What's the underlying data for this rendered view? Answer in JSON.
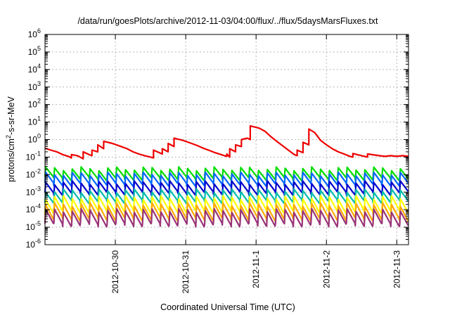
{
  "chart_data": {
    "type": "line",
    "title": "/data/run/goesPlots/archive/2012-11-03/04:00/flux/../flux/5daysMarsFluxes.txt",
    "xlabel": "Coordinated Universal Time (UTC)",
    "ylabel": {
      "prefix": "protons/cm",
      "sup": "2",
      "suffix": "-s-sr-MeV"
    },
    "yscale": "log",
    "ylim": [
      1e-06,
      1000000.0
    ],
    "xlim": [
      "2012-10-29T00:00",
      "2012-11-03T04:00"
    ],
    "grid": true,
    "ytick_labels": [
      {
        "base": "10",
        "exp": "-6"
      },
      {
        "base": "10",
        "exp": "-5"
      },
      {
        "base": "10",
        "exp": "-4"
      },
      {
        "base": "10",
        "exp": "-3"
      },
      {
        "base": "10",
        "exp": "-2"
      },
      {
        "base": "10",
        "exp": "-1"
      },
      {
        "base": "10",
        "exp": "0"
      },
      {
        "base": "10",
        "exp": "1"
      },
      {
        "base": "10",
        "exp": "2"
      },
      {
        "base": "10",
        "exp": "3"
      },
      {
        "base": "10",
        "exp": "4"
      },
      {
        "base": "10",
        "exp": "5"
      },
      {
        "base": "10",
        "exp": "6"
      }
    ],
    "xtick_labels": [
      {
        "label": "2012-10-30",
        "t": "2012-10-30T00:00"
      },
      {
        "label": "2012-10-31",
        "t": "2012-10-31T00:00"
      },
      {
        "label": "2012-11-1",
        "t": "2012-11-01T00:00"
      },
      {
        "label": "2012-11-2",
        "t": "2012-11-02T00:00"
      },
      {
        "label": "2012-11-3",
        "t": "2012-11-03T00:00"
      }
    ],
    "series": [
      {
        "color": "#ee0000",
        "points": [
          [
            "2012-10-29T00:00",
            0.32
          ],
          [
            "2012-10-29T02:00",
            0.25
          ],
          [
            "2012-10-29T04:00",
            0.2
          ],
          [
            "2012-10-29T06:00",
            0.14
          ],
          [
            "2012-10-29T08:00",
            0.11
          ],
          [
            "2012-10-29T09:00",
            0.09
          ],
          [
            "2012-10-29T09:01",
            0.14
          ],
          [
            "2012-10-29T11:00",
            0.12
          ],
          [
            "2012-10-29T12:00",
            0.1
          ],
          [
            "2012-10-29T13:00",
            0.08
          ],
          [
            "2012-10-29T13:01",
            0.2
          ],
          [
            "2012-10-29T15:00",
            0.14
          ],
          [
            "2012-10-29T16:00",
            0.12
          ],
          [
            "2012-10-29T16:01",
            0.25
          ],
          [
            "2012-10-29T18:00",
            0.2
          ],
          [
            "2012-10-29T18:01",
            0.5
          ],
          [
            "2012-10-29T20:00",
            0.3
          ],
          [
            "2012-10-29T20:01",
            0.8
          ],
          [
            "2012-10-29T23:00",
            0.6
          ],
          [
            "2012-10-30T02:00",
            0.4
          ],
          [
            "2012-10-30T04:00",
            0.3
          ],
          [
            "2012-10-30T06:00",
            0.2
          ],
          [
            "2012-10-30T08:00",
            0.15
          ],
          [
            "2012-10-30T10:00",
            0.12
          ],
          [
            "2012-10-30T12:00",
            0.1
          ],
          [
            "2012-10-30T13:00",
            0.09
          ],
          [
            "2012-10-30T13:01",
            0.25
          ],
          [
            "2012-10-30T15:00",
            0.18
          ],
          [
            "2012-10-30T16:00",
            0.15
          ],
          [
            "2012-10-30T16:01",
            0.3
          ],
          [
            "2012-10-30T18:00",
            0.2
          ],
          [
            "2012-10-30T18:01",
            0.6
          ],
          [
            "2012-10-30T20:00",
            0.4
          ],
          [
            "2012-10-30T20:01",
            1.2
          ],
          [
            "2012-10-30T23:00",
            0.9
          ],
          [
            "2012-10-31T02:00",
            0.6
          ],
          [
            "2012-10-31T04:00",
            0.45
          ],
          [
            "2012-10-31T06:00",
            0.32
          ],
          [
            "2012-10-31T08:00",
            0.24
          ],
          [
            "2012-10-31T10:00",
            0.18
          ],
          [
            "2012-10-31T12:00",
            0.14
          ],
          [
            "2012-10-31T14:00",
            0.11
          ],
          [
            "2012-10-31T14:01",
            0.15
          ],
          [
            "2012-10-31T15:00",
            0.1
          ],
          [
            "2012-10-31T15:01",
            0.3
          ],
          [
            "2012-10-31T17:00",
            0.2
          ],
          [
            "2012-10-31T17:01",
            0.5
          ],
          [
            "2012-10-31T19:00",
            0.4
          ],
          [
            "2012-10-31T19:01",
            1.0
          ],
          [
            "2012-10-31T21:00",
            1.2
          ],
          [
            "2012-10-31T22:00",
            1.0
          ],
          [
            "2012-10-31T22:01",
            6.0
          ],
          [
            "2012-11-01T01:00",
            4.5
          ],
          [
            "2012-11-01T03:00",
            3.0
          ],
          [
            "2012-11-01T05:00",
            1.5
          ],
          [
            "2012-11-01T07:00",
            0.8
          ],
          [
            "2012-11-01T09:00",
            0.45
          ],
          [
            "2012-11-01T11:00",
            0.25
          ],
          [
            "2012-11-01T13:00",
            0.14
          ],
          [
            "2012-11-01T14:00",
            0.12
          ],
          [
            "2012-11-01T14:01",
            0.25
          ],
          [
            "2012-11-01T16:00",
            0.18
          ],
          [
            "2012-11-01T16:01",
            0.7
          ],
          [
            "2012-11-01T18:00",
            0.5
          ],
          [
            "2012-11-01T18:01",
            4.0
          ],
          [
            "2012-11-01T20:00",
            2.5
          ],
          [
            "2012-11-01T22:00",
            0.9
          ],
          [
            "2012-11-02T00:00",
            0.5
          ],
          [
            "2012-11-02T02:00",
            0.3
          ],
          [
            "2012-11-02T04:00",
            0.2
          ],
          [
            "2012-11-02T06:00",
            0.15
          ],
          [
            "2012-11-02T08:00",
            0.11
          ],
          [
            "2012-11-02T09:00",
            0.1
          ],
          [
            "2012-11-02T09:01",
            0.16
          ],
          [
            "2012-11-02T12:00",
            0.12
          ],
          [
            "2012-11-02T14:00",
            0.1
          ],
          [
            "2012-11-02T14:01",
            0.15
          ],
          [
            "2012-11-02T18:00",
            0.12
          ],
          [
            "2012-11-02T20:00",
            0.11
          ],
          [
            "2012-11-02T22:00",
            0.12
          ],
          [
            "2012-11-03T00:00",
            0.11
          ],
          [
            "2012-11-03T02:00",
            0.12
          ],
          [
            "2012-11-03T04:00",
            0.11
          ]
        ]
      },
      {
        "color": "#00dd00",
        "pattern": {
          "top": 0.022,
          "bottom": 0.006,
          "teeth": 41
        }
      },
      {
        "color": "#0066ff",
        "pattern": {
          "top": 0.011,
          "bottom": 0.0028,
          "teeth": 41
        }
      },
      {
        "color": "#0000cc",
        "pattern": {
          "top": 0.0035,
          "bottom": 0.0009,
          "teeth": 41
        }
      },
      {
        "color": "#00bbaa",
        "pattern": {
          "top": 0.0012,
          "bottom": 0.0003,
          "teeth": 41
        }
      },
      {
        "color": "#ffff00",
        "pattern": {
          "top": 0.0005,
          "bottom": 8e-05,
          "teeth": 41
        }
      },
      {
        "color": "#ffaa00",
        "pattern": {
          "top": 0.0002,
          "bottom": 3e-05,
          "teeth": 41
        }
      },
      {
        "color": "#993377",
        "pattern": {
          "top": 9e-05,
          "bottom": 1.4e-05,
          "teeth": 41
        }
      }
    ]
  }
}
